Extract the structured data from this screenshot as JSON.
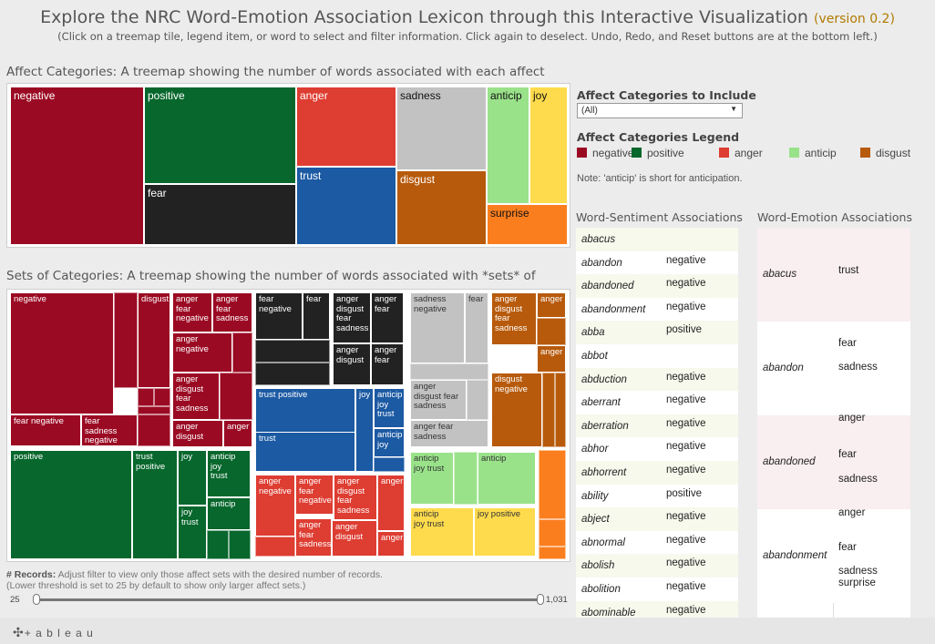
{
  "header": {
    "title": "Explore the NRC Word-Emotion Association Lexicon through this Interactive Visualization",
    "version": "(version 0.2)",
    "subtitle": "(Click on a treemap tile, legend item, or word to select and filter information. Click again to deselect. Undo, Redo, and Reset buttons are at the bottom left.)"
  },
  "colors": {
    "negative": "#9b0a23",
    "positive": "#07672c",
    "anger": "#de3d32",
    "sadness": "#c2c2c2",
    "anticip": "#9ae28a",
    "joy": "#fedb4d",
    "fear": "#222222",
    "trust": "#1c5aa3",
    "disgust": "#b75a0c",
    "surprise": "#fb7e1e"
  },
  "affect": {
    "title": "Affect Categories: A treemap showing the number of words associated with each affect",
    "tiles": [
      "negative",
      "positive",
      "fear",
      "anger",
      "trust",
      "sadness",
      "disgust",
      "anticip",
      "joy",
      "surprise"
    ]
  },
  "sets": {
    "title": "Sets of Categories: A treemap showing the number of words associated with *sets* of",
    "labels": {
      "negative": "negative",
      "disgust": "disgust",
      "fear_negative": "fear negative",
      "fear_sadness_negative": "fear sadness\nnegative",
      "anger_fear_negative": "anger\nfear\nnegative",
      "anger_fear_sadness": "anger\nfear\nsadness",
      "anger_negative": "anger\nnegative",
      "anger_disgust_fear_sadness": "anger\ndisgust\nfear\nsadness",
      "anger_disgust": "anger\ndisgust",
      "anger": "anger",
      "fear_negative_blk": "fear\nnegative",
      "fear": "fear",
      "anger_disgust_fear_sadness_blk": "anger\ndisgust\nfear\nsadness",
      "anger_fear_blk": "anger\nfear",
      "anger_fear_blk2": "anger\nfear",
      "anger_disgust_blk": "anger\ndisgust",
      "sadness_negative": "sadness\nnegative",
      "fear_gray": "fear",
      "anger_disgust_fear_sadness_gray": "anger\ndisgust fear\nsadness",
      "anger_fear_sadness_gray": "anger fear\nsadness",
      "anger_disgust_fear_sadness_or": "anger\ndisgust\nfear\nsadness",
      "anger_or": "anger",
      "anger_or2": "anger",
      "disgust_negative": "disgust\nnegative",
      "positive": "positive",
      "trust_positive": "trust\npositive",
      "joy": "joy",
      "anticip_joy_trust": "anticip\njoy\ntrust",
      "joy_trust": "joy\ntrust",
      "anticip": "anticip",
      "trust_positive_blue": "trust positive",
      "joy_blue": "joy",
      "anticip_joy_trust_blue": "anticip\njoy\ntrust",
      "trust_blue": "trust",
      "anticip_joy_blue": "anticip\njoy",
      "anger_negative_red": "anger\nnegative",
      "anger_fear_negative_red": "anger\nfear\nnegative",
      "anger_disgust_fear_sadness_red": "anger\ndisgust\nfear\nsadness",
      "anger_red": "anger",
      "anger_fear_sadness_red": "anger\nfear\nsadness",
      "anger_disgust_red": "anger\ndisgust",
      "anger_red2": "anger",
      "anticip_joy_trust_green": "anticip\njoy trust",
      "anticip_green": "anticip",
      "anticip_joy_trust_yellow": "anticip\njoy trust",
      "joy_positive_yellow": "joy positive"
    }
  },
  "filter": {
    "title": "Affect Categories to Include",
    "selected": "(All)"
  },
  "legend": {
    "title": "Affect Categories Legend",
    "items": [
      {
        "label": "negative",
        "color": "#9b0a23"
      },
      {
        "label": "positive",
        "color": "#07672c"
      },
      {
        "label": "anger",
        "color": "#de3d32"
      },
      {
        "label": "anticip",
        "color": "#9ae28a"
      },
      {
        "label": "disgust",
        "color": "#b75a0c"
      }
    ],
    "note": "Note: 'anticip' is short for anticipation."
  },
  "records": {
    "label": "# Records:",
    "desc": "Adjust filter to view only those affect sets with the desired number of records.",
    "desc2": "(Lower threshold is set to 25 by default to show only larger affect sets.)",
    "min": "25",
    "max": "1,031"
  },
  "sentiment": {
    "title": "Word-Sentiment Associations",
    "rows": [
      {
        "word": "abacus",
        "sentiment": ""
      },
      {
        "word": "abandon",
        "sentiment": "negative"
      },
      {
        "word": "abandoned",
        "sentiment": "negative"
      },
      {
        "word": "abandonment",
        "sentiment": "negative"
      },
      {
        "word": "abba",
        "sentiment": "positive"
      },
      {
        "word": "abbot",
        "sentiment": ""
      },
      {
        "word": "abduction",
        "sentiment": "negative"
      },
      {
        "word": "aberrant",
        "sentiment": "negative"
      },
      {
        "word": "aberration",
        "sentiment": "negative"
      },
      {
        "word": "abhor",
        "sentiment": "negative"
      },
      {
        "word": "abhorrent",
        "sentiment": "negative"
      },
      {
        "word": "ability",
        "sentiment": "positive"
      },
      {
        "word": "abject",
        "sentiment": "negative"
      },
      {
        "word": "abnormal",
        "sentiment": "negative"
      },
      {
        "word": "abolish",
        "sentiment": "negative"
      },
      {
        "word": "abolition",
        "sentiment": "negative"
      },
      {
        "word": "abominable",
        "sentiment": "negative"
      }
    ]
  },
  "emotion": {
    "title": "Word-Emotion Associations",
    "groups": [
      {
        "word": "abacus",
        "emotions": [
          "trust"
        ]
      },
      {
        "word": "abandon",
        "emotions": [
          "fear",
          "sadness"
        ]
      },
      {
        "word": "abandoned",
        "emotions": [
          "anger",
          "fear",
          "sadness"
        ]
      },
      {
        "word": "abandonment",
        "emotions": [
          "anger",
          "fear",
          "sadness",
          "surprise"
        ]
      }
    ]
  },
  "footer": {
    "brand": "+ a b l e a u"
  }
}
